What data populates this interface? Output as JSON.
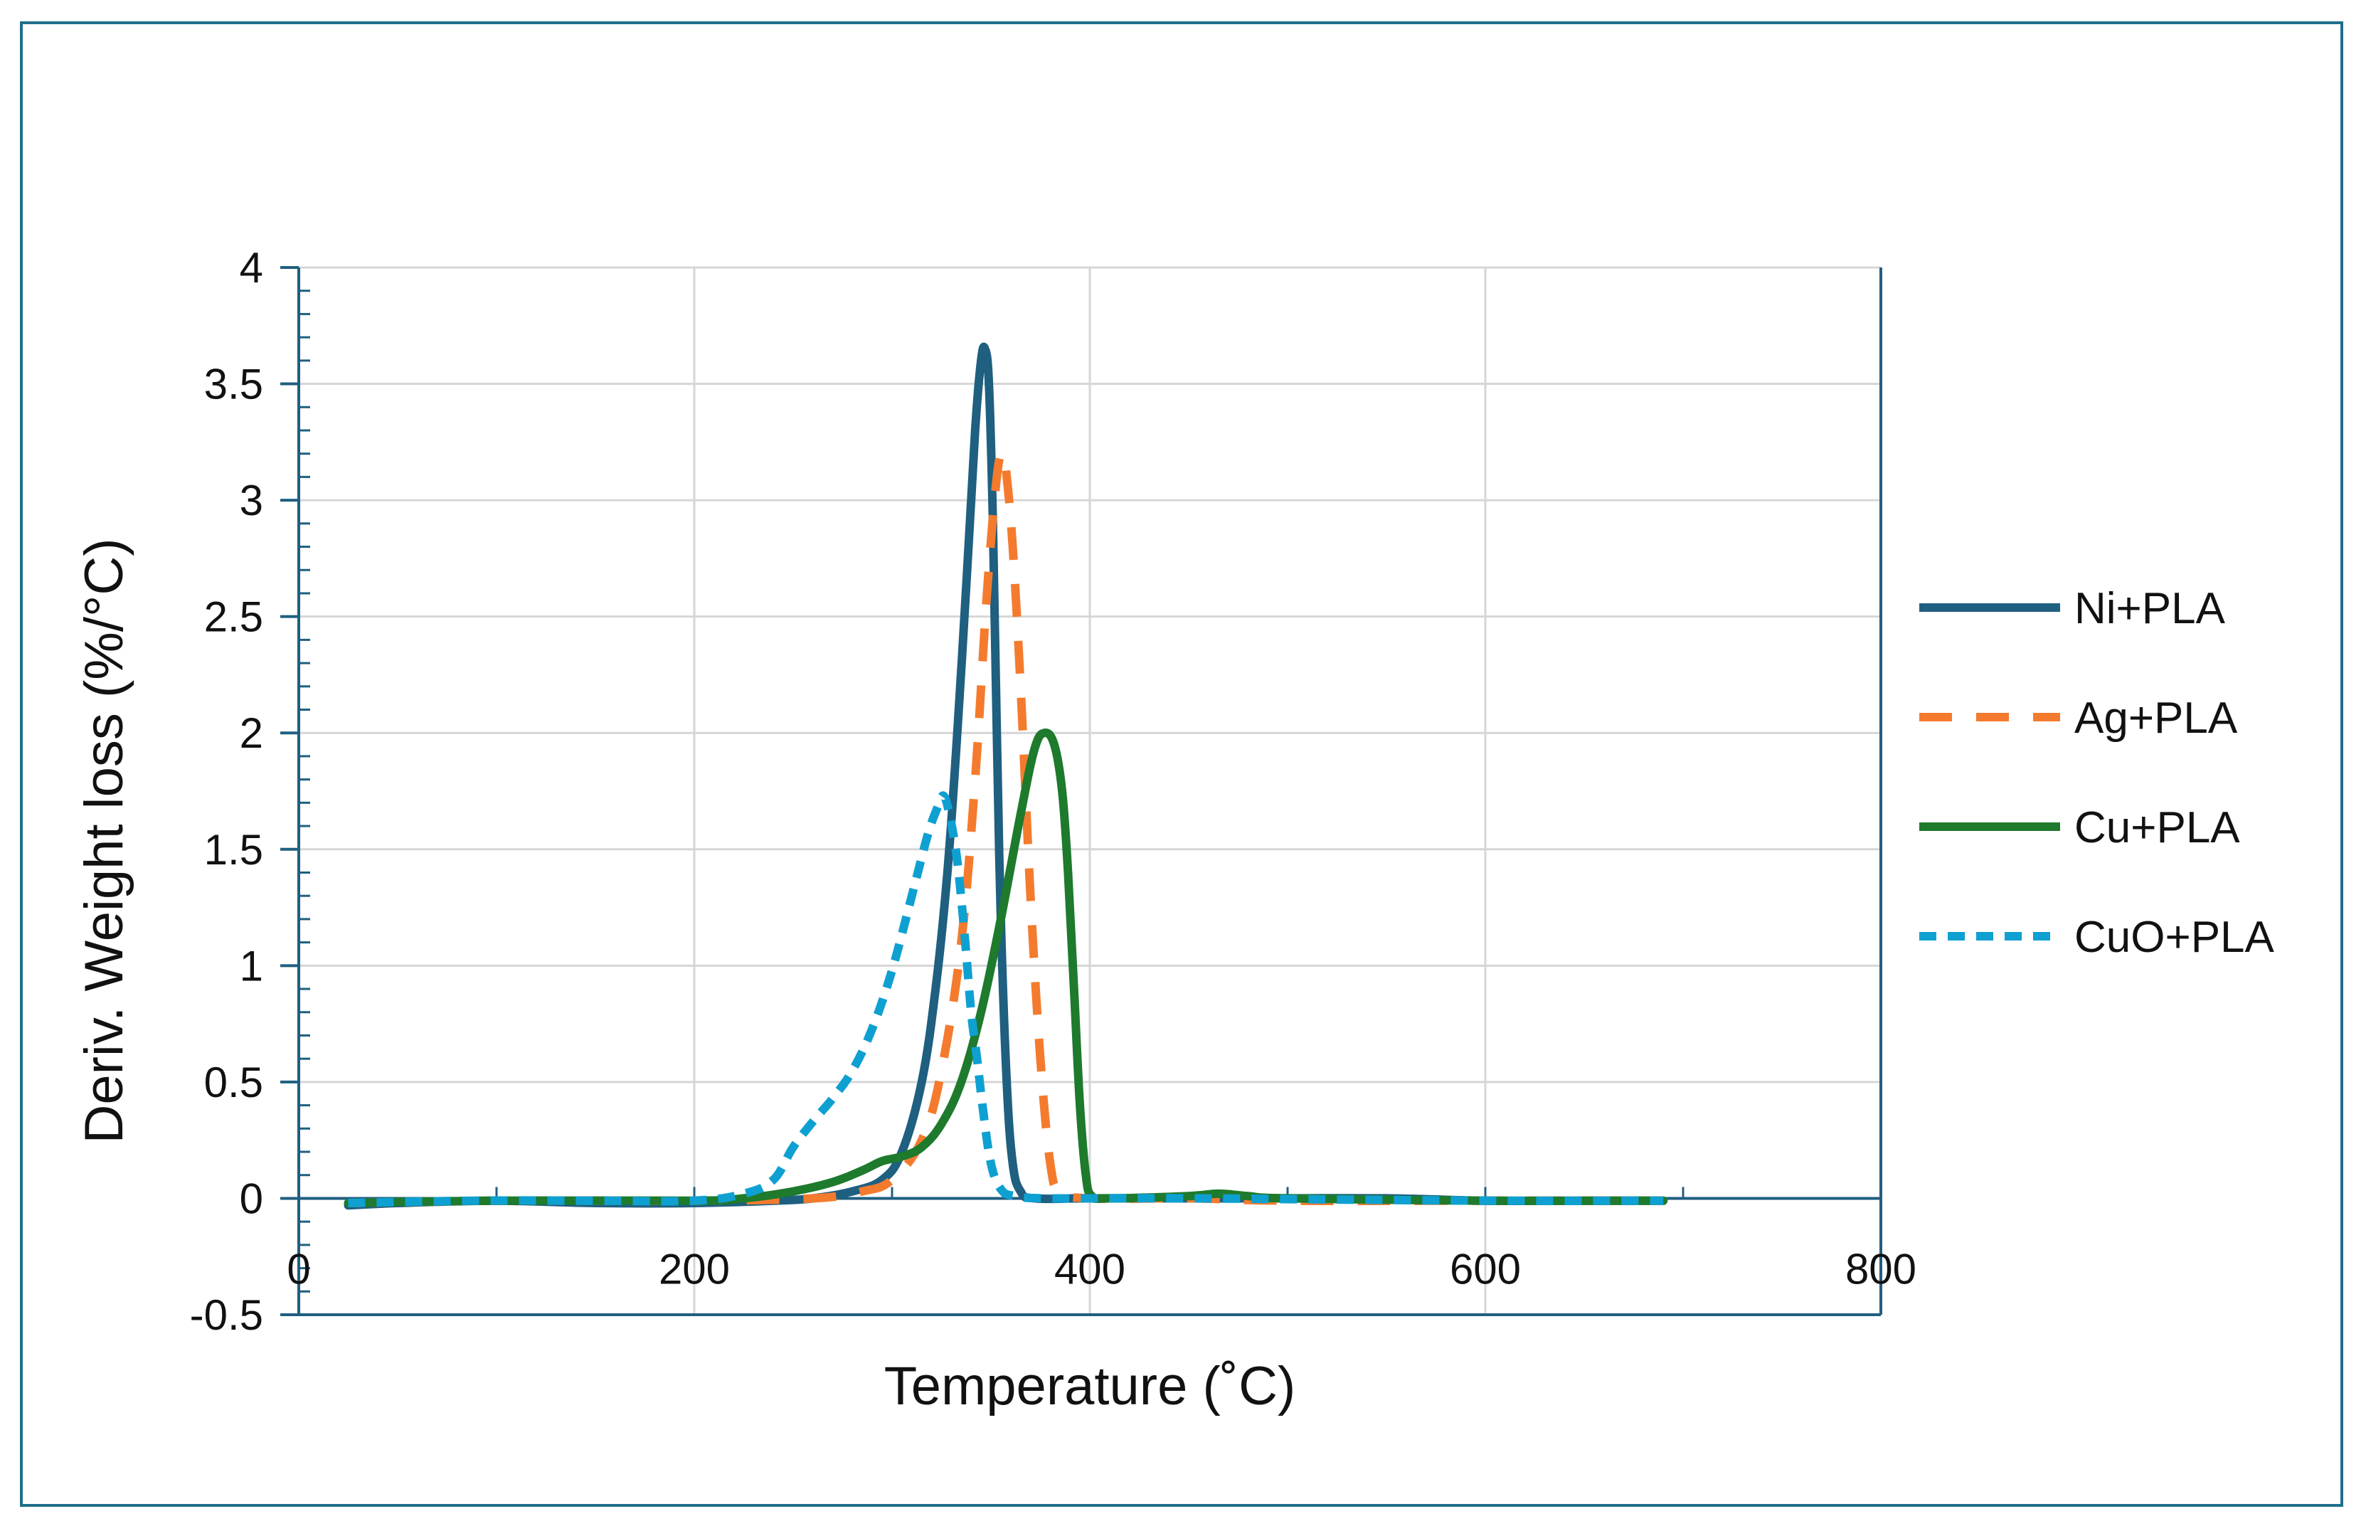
{
  "chart_data": {
    "type": "line",
    "title": "",
    "xlabel": "Temperature (˚C)",
    "ylabel": "Deriv. Weight loss (%/°C)",
    "xlim": [
      0,
      800
    ],
    "ylim": [
      -0.5,
      4
    ],
    "xticks": [
      0,
      200,
      400,
      600,
      800
    ],
    "yticks": [
      -0.5,
      0,
      0.5,
      1,
      1.5,
      2,
      2.5,
      3,
      3.5,
      4
    ],
    "xtick_labels": [
      "0",
      "200",
      "400",
      "600",
      "800"
    ],
    "ytick_labels": [
      "-0.5",
      "0",
      "0.5",
      "1",
      "1.5",
      "2",
      "2.5",
      "3",
      "3.5",
      "4"
    ],
    "grid": true,
    "legend_position": "right",
    "series": [
      {
        "name": "Ni+PLA",
        "color": "#1f5f80",
        "dash": "solid",
        "points": [
          [
            25,
            -0.03
          ],
          [
            50,
            -0.02
          ],
          [
            100,
            -0.01
          ],
          [
            150,
            -0.02
          ],
          [
            200,
            -0.02
          ],
          [
            240,
            -0.01
          ],
          [
            260,
            0.0
          ],
          [
            280,
            0.03
          ],
          [
            295,
            0.08
          ],
          [
            305,
            0.2
          ],
          [
            315,
            0.5
          ],
          [
            322,
            0.9
          ],
          [
            328,
            1.4
          ],
          [
            333,
            2.0
          ],
          [
            338,
            2.7
          ],
          [
            342,
            3.3
          ],
          [
            345,
            3.6
          ],
          [
            347,
            3.65
          ],
          [
            349,
            3.5
          ],
          [
            351,
            2.9
          ],
          [
            353,
            2.0
          ],
          [
            355,
            1.2
          ],
          [
            358,
            0.5
          ],
          [
            361,
            0.15
          ],
          [
            365,
            0.03
          ],
          [
            372,
            0.0
          ],
          [
            400,
            0.0
          ],
          [
            450,
            0.0
          ],
          [
            500,
            0.0
          ],
          [
            550,
            0.0
          ],
          [
            600,
            -0.01
          ],
          [
            650,
            -0.01
          ],
          [
            690,
            -0.01
          ]
        ]
      },
      {
        "name": "Ag+PLA",
        "color": "#f47b2e",
        "dash": "dashed",
        "points": [
          [
            25,
            -0.02
          ],
          [
            100,
            -0.01
          ],
          [
            200,
            -0.01
          ],
          [
            260,
            0.0
          ],
          [
            285,
            0.03
          ],
          [
            300,
            0.08
          ],
          [
            315,
            0.25
          ],
          [
            325,
            0.55
          ],
          [
            335,
            1.1
          ],
          [
            342,
            1.8
          ],
          [
            348,
            2.6
          ],
          [
            353,
            3.1
          ],
          [
            356,
            3.2
          ],
          [
            358,
            3.1
          ],
          [
            361,
            2.8
          ],
          [
            365,
            2.2
          ],
          [
            370,
            1.3
          ],
          [
            375,
            0.6
          ],
          [
            380,
            0.15
          ],
          [
            385,
            0.03
          ],
          [
            400,
            0.0
          ],
          [
            450,
            0.0
          ],
          [
            500,
            -0.01
          ],
          [
            600,
            -0.01
          ],
          [
            690,
            -0.01
          ]
        ]
      },
      {
        "name": "Cu+PLA",
        "color": "#1e7a2c",
        "dash": "solid",
        "points": [
          [
            25,
            -0.02
          ],
          [
            100,
            -0.01
          ],
          [
            200,
            -0.01
          ],
          [
            225,
            0.0
          ],
          [
            250,
            0.03
          ],
          [
            270,
            0.07
          ],
          [
            285,
            0.12
          ],
          [
            295,
            0.16
          ],
          [
            305,
            0.18
          ],
          [
            315,
            0.22
          ],
          [
            325,
            0.32
          ],
          [
            335,
            0.5
          ],
          [
            345,
            0.8
          ],
          [
            355,
            1.2
          ],
          [
            365,
            1.65
          ],
          [
            372,
            1.93
          ],
          [
            377,
            2.0
          ],
          [
            382,
            1.95
          ],
          [
            386,
            1.75
          ],
          [
            389,
            1.4
          ],
          [
            392,
            0.9
          ],
          [
            395,
            0.4
          ],
          [
            398,
            0.1
          ],
          [
            401,
            0.01
          ],
          [
            410,
            0.0
          ],
          [
            450,
            0.01
          ],
          [
            465,
            0.02
          ],
          [
            480,
            0.01
          ],
          [
            500,
            0.0
          ],
          [
            600,
            -0.01
          ],
          [
            690,
            -0.01
          ]
        ]
      },
      {
        "name": "CuO+PLA",
        "color": "#0fa0d2",
        "dash": "dotted",
        "points": [
          [
            25,
            -0.02
          ],
          [
            90,
            -0.01
          ],
          [
            150,
            -0.01
          ],
          [
            200,
            -0.01
          ],
          [
            225,
            0.02
          ],
          [
            240,
            0.08
          ],
          [
            250,
            0.22
          ],
          [
            260,
            0.33
          ],
          [
            270,
            0.43
          ],
          [
            280,
            0.55
          ],
          [
            290,
            0.73
          ],
          [
            300,
            0.98
          ],
          [
            310,
            1.3
          ],
          [
            318,
            1.56
          ],
          [
            323,
            1.68
          ],
          [
            326,
            1.73
          ],
          [
            329,
            1.65
          ],
          [
            333,
            1.45
          ],
          [
            337,
            1.1
          ],
          [
            340,
            0.8
          ],
          [
            343,
            0.6
          ],
          [
            346,
            0.38
          ],
          [
            350,
            0.15
          ],
          [
            355,
            0.04
          ],
          [
            362,
            0.01
          ],
          [
            380,
            0.0
          ],
          [
            450,
            0.0
          ],
          [
            600,
            -0.01
          ],
          [
            690,
            -0.01
          ]
        ]
      }
    ]
  }
}
